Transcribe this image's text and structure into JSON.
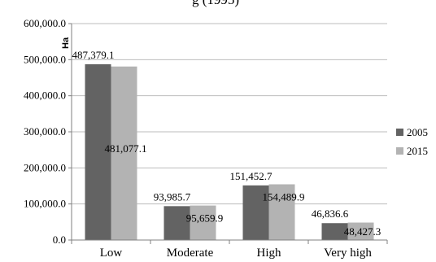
{
  "header_fragment": "g (1995)",
  "chart_data": {
    "type": "bar",
    "ylabel": "Ha",
    "ylim": [
      0,
      600000
    ],
    "yticks": [
      "0.0",
      "100,000.0",
      "200,000.0",
      "300,000.0",
      "400,000.0",
      "500,000.0",
      "600,000.0"
    ],
    "categories": [
      "Low",
      "Moderate",
      "High",
      "Very high"
    ],
    "series": [
      {
        "name": "2005",
        "color": "#636363",
        "values": [
          487379.1,
          93985.7,
          151452.7,
          46836.6
        ],
        "labels": [
          "487,379.1",
          "93,985.7",
          "151,452.7",
          "46,836.6"
        ]
      },
      {
        "name": "2015",
        "color": "#b3b3b3",
        "values": [
          481077.1,
          95659.9,
          154489.9,
          48427.3
        ],
        "labels": [
          "481,077.1",
          "95,659.9",
          "154,489.9",
          "48,427.3"
        ]
      }
    ],
    "legend_position": "right",
    "grid": true
  }
}
